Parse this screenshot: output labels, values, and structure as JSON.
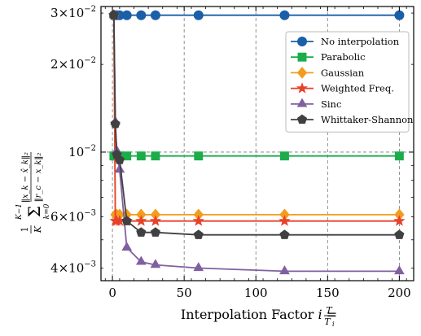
{
  "chart_data": {
    "type": "line",
    "xlabel": "Interpolation Factor i = T / T_i",
    "xlabel_parts": {
      "prefix": "Interpolation Factor ",
      "var": "i",
      "eq": " = ",
      "num": "T",
      "den": "T",
      "den_sub": "i"
    },
    "ylabel": "(1/K) Σ_{k=0}^{K-1} ||x_k − x̂_k||_2 / ||r_c − x_k||_2",
    "ylabel_parts": {
      "frac_num": "1",
      "frac_den": "K",
      "sum_top": "K−1",
      "sum_bottom": "k=0",
      "num": "‖x_k − x̂_k‖₂",
      "den": "‖r_c − x_k‖₂"
    },
    "x_scale": "linear",
    "y_scale": "log",
    "xlim": [
      -8,
      210
    ],
    "ylim": [
      0.00362,
      0.0316
    ],
    "x_ticks": [
      0,
      50,
      100,
      150,
      200
    ],
    "x_tick_labels": [
      "0",
      "50",
      "100",
      "150",
      "200"
    ],
    "y_ticks": [
      0.004,
      0.006,
      0.01,
      0.02,
      0.03
    ],
    "y_tick_labels": [
      {
        "mant": "4",
        "exp": "−3"
      },
      {
        "mant": "6",
        "exp": "−3"
      },
      {
        "mant": "",
        "exp": "−2"
      },
      {
        "mant": "2",
        "exp": "−2"
      },
      {
        "mant": "3",
        "exp": "−2"
      }
    ],
    "grid": "dashed vertical lines at x ticks and horizontal line at 10^-2",
    "legend_placement": "top-right",
    "x": [
      1,
      2,
      3,
      5,
      10,
      20,
      30,
      60,
      120,
      200
    ],
    "series": [
      {
        "name": "No interpolation",
        "color": "#1a5fa8",
        "marker": "circle",
        "values": [
          0.0295,
          0.0295,
          0.0295,
          0.0295,
          0.0295,
          0.0295,
          0.0295,
          0.0295,
          0.0295,
          0.0295
        ]
      },
      {
        "name": "Parabolic",
        "color": "#1aad4a",
        "marker": "square",
        "values": [
          0.0097,
          0.0097,
          0.0097,
          0.0097,
          0.0097,
          0.0097,
          0.0097,
          0.0097,
          0.0097,
          0.0097
        ]
      },
      {
        "name": "Gaussian",
        "color": "#f39c1f",
        "marker": "diamond",
        "values": [
          0.0295,
          0.0061,
          0.0061,
          0.0061,
          0.0061,
          0.0061,
          0.0061,
          0.0061,
          0.0061,
          0.0061
        ]
      },
      {
        "name": "Weighted Freq.",
        "color": "#e8412a",
        "marker": "star",
        "values": [
          0.0295,
          0.0058,
          0.0058,
          0.0058,
          0.0058,
          0.0058,
          0.0058,
          0.0058,
          0.0058,
          0.0058
        ]
      },
      {
        "name": "Sinc",
        "color": "#8060a0",
        "marker": "triangle",
        "values": [
          0.0295,
          0.0127,
          0.0101,
          0.0087,
          0.0047,
          0.0042,
          0.0041,
          0.004,
          0.0039,
          0.0039
        ]
      },
      {
        "name": "Whittaker-Shannon",
        "color": "#404040",
        "marker": "pentagon",
        "values": [
          0.0295,
          0.0125,
          0.0098,
          0.0094,
          0.0058,
          0.0053,
          0.0053,
          0.0052,
          0.0052,
          0.0052
        ]
      }
    ]
  }
}
